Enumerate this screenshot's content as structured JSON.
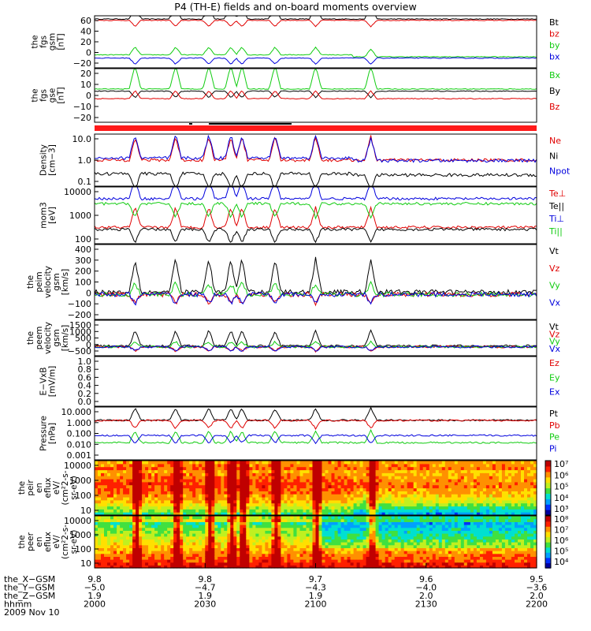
{
  "title": "P4 (TH-E) fields and on-board moments overview",
  "colors": {
    "black": "#000000",
    "red": "#e00000",
    "green": "#11cc11",
    "blue": "#0000dd",
    "bar": "#ff1a1a"
  },
  "chart_data": [
    {
      "type": "line",
      "ylabel": [
        "the",
        "fgs",
        "gsm",
        "[nT]"
      ],
      "ylim": [
        -20,
        60
      ],
      "yticks": [
        "60",
        "40",
        "20",
        "0",
        "−20"
      ],
      "series": [
        {
          "name": "Bt",
          "color": "black",
          "level": 55
        },
        {
          "name": "bz",
          "color": "red",
          "level": 53
        },
        {
          "name": "by",
          "color": "green",
          "level": 0
        },
        {
          "name": "bx",
          "color": "blue",
          "level": -5
        }
      ]
    },
    {
      "type": "line",
      "ylabel": [
        "the",
        "fgs",
        "gse",
        "[nT]"
      ],
      "ylim": [
        -30,
        20
      ],
      "yticks": [
        "20",
        "10",
        "0",
        "−10",
        "−20"
      ],
      "series": [
        {
          "name": "Bx",
          "color": "green",
          "level": 1
        },
        {
          "name": "By",
          "color": "black",
          "level": -1
        },
        {
          "name": "Bz",
          "color": "red",
          "level": -8
        }
      ]
    },
    {
      "type": "line",
      "log": true,
      "ylabel": [
        "Density",
        "[cm−3]"
      ],
      "ylim": [
        0.1,
        10
      ],
      "yticks": [
        "10.0",
        "1.0",
        "0.1"
      ],
      "series": [
        {
          "name": "Ne",
          "color": "red",
          "level": 1.0
        },
        {
          "name": "Ni",
          "color": "black",
          "level": 0.3
        },
        {
          "name": "Npot",
          "color": "blue",
          "level": 1.2
        }
      ]
    },
    {
      "type": "line",
      "log": true,
      "ylabel": [
        "mom3",
        "[eV]"
      ],
      "ylim": [
        30,
        10000
      ],
      "yticks": [
        "10000",
        "1000",
        "100"
      ],
      "series": [
        {
          "name": "Te⊥",
          "color": "red",
          "level": 160
        },
        {
          "name": "Te||",
          "color": "black",
          "level": 130
        },
        {
          "name": "Ti⊥",
          "color": "blue",
          "level": 3000
        },
        {
          "name": "Ti||",
          "color": "green",
          "level": 1800
        }
      ]
    },
    {
      "type": "line",
      "ylabel": [
        "the",
        "peim",
        "velocity",
        "gsm",
        "[km/s]"
      ],
      "ylim": [
        -200,
        400
      ],
      "yticks": [
        "400",
        "300",
        "200",
        "100",
        "0",
        "−100",
        "−200"
      ],
      "series": [
        {
          "name": "Vt",
          "color": "black",
          "level": 20
        },
        {
          "name": "Vz",
          "color": "red",
          "level": 0
        },
        {
          "name": "Vy",
          "color": "green",
          "level": 0
        },
        {
          "name": "Vx",
          "color": "blue",
          "level": 0
        }
      ]
    },
    {
      "type": "line",
      "ylabel": [
        "the",
        "peem",
        "velocity",
        "gsm",
        "[km/s]"
      ],
      "ylim": [
        -500,
        1500
      ],
      "yticks": [
        "1500",
        "1000",
        "500",
        "0",
        "−500"
      ],
      "series": [
        {
          "name": "Vt",
          "color": "black",
          "level": 50
        },
        {
          "name": "Vz",
          "color": "red",
          "level": 0
        },
        {
          "name": "Vy",
          "color": "green",
          "level": 0
        },
        {
          "name": "Vx",
          "color": "blue",
          "level": 0
        }
      ]
    },
    {
      "type": "line",
      "ylabel": [
        "E−VxB",
        "[mV/m]"
      ],
      "ylim": [
        0,
        1
      ],
      "yticks": [
        "1.0",
        "0.8",
        "0.6",
        "0.4",
        "0.2",
        "0.0"
      ],
      "series": [
        {
          "name": "Ez",
          "color": "red"
        },
        {
          "name": "Ey",
          "color": "green"
        },
        {
          "name": "Ex",
          "color": "blue"
        }
      ]
    },
    {
      "type": "line",
      "log": true,
      "ylabel": [
        "Pressure",
        "[nPa]"
      ],
      "ylim": [
        0.001,
        10
      ],
      "yticks": [
        "10.000",
        "1.000",
        "0.100",
        "0.010",
        "0.001"
      ],
      "series": [
        {
          "name": "Pt",
          "color": "black",
          "level": 1.0
        },
        {
          "name": "Pb",
          "color": "red",
          "level": 0.95
        },
        {
          "name": "Pe",
          "color": "green",
          "level": 0.02
        },
        {
          "name": "Pi",
          "color": "blue",
          "level": 0.07
        }
      ]
    },
    {
      "type": "heatmap",
      "ylabel": [
        "the",
        "peir",
        "en",
        "eflux",
        "eV/",
        "(cm²2-s-",
        "sr-eV)"
      ],
      "ylim": [
        10,
        20000
      ],
      "yticks": [
        "10000",
        "1000",
        "100",
        "10"
      ],
      "cbar": [
        "10⁷",
        "10⁶",
        "10⁵",
        "10⁴",
        "10³"
      ]
    },
    {
      "type": "heatmap",
      "ylabel": [
        "the",
        "peer",
        "en",
        "eflux",
        "eV/",
        "(cm²2-s-",
        "sr-eV)"
      ],
      "ylim": [
        8,
        20000
      ],
      "yticks": [
        "10000",
        "1000",
        "100",
        "10"
      ],
      "cbar": [
        "10⁸",
        "10⁷",
        "10⁶",
        "10⁵",
        "10⁴"
      ]
    }
  ],
  "xaxis": {
    "rows": [
      {
        "label": "the_X−GSM",
        "values": [
          "9.8",
          "9.8",
          "9.7",
          "9.6",
          "9.5"
        ]
      },
      {
        "label": "the_Y−GSM",
        "values": [
          "−5.0",
          "−4.7",
          "−4.3",
          "−4.0",
          "−3.6"
        ]
      },
      {
        "label": "the_Z−GSM",
        "values": [
          "1.9",
          "1.9",
          "1.9",
          "2.0",
          "2.0"
        ]
      },
      {
        "label": "hhmm",
        "values": [
          "2000",
          "2030",
          "2100",
          "2130",
          "2200"
        ]
      }
    ],
    "date": "2009 Nov 10"
  },
  "events_minutes": [
    11,
    22,
    31,
    37,
    40,
    49,
    60,
    75
  ]
}
